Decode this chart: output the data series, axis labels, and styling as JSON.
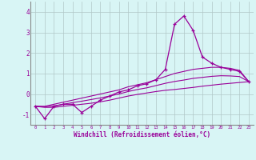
{
  "xlabel": "Windchill (Refroidissement éolien,°C)",
  "x_hours": [
    0,
    1,
    2,
    3,
    4,
    5,
    6,
    7,
    8,
    9,
    10,
    11,
    12,
    13,
    14,
    15,
    16,
    17,
    18,
    19,
    20,
    21,
    22,
    23
  ],
  "main_line": [
    -0.6,
    -1.2,
    -0.6,
    -0.5,
    -0.5,
    -0.9,
    -0.6,
    -0.3,
    -0.1,
    0.1,
    0.2,
    0.4,
    0.5,
    0.7,
    1.2,
    3.4,
    3.8,
    3.1,
    1.8,
    1.5,
    1.3,
    1.2,
    1.1,
    0.6
  ],
  "upper_env": [
    -0.6,
    -0.6,
    -0.5,
    -0.4,
    -0.3,
    -0.2,
    -0.1,
    0.0,
    0.1,
    0.2,
    0.35,
    0.45,
    0.55,
    0.7,
    0.85,
    1.0,
    1.1,
    1.2,
    1.25,
    1.3,
    1.3,
    1.25,
    1.15,
    0.6
  ],
  "lower_env": [
    -0.6,
    -0.65,
    -0.65,
    -0.6,
    -0.55,
    -0.5,
    -0.45,
    -0.38,
    -0.3,
    -0.2,
    -0.1,
    -0.02,
    0.05,
    0.12,
    0.18,
    0.22,
    0.27,
    0.32,
    0.38,
    0.43,
    0.48,
    0.52,
    0.56,
    0.6
  ],
  "mid_env": [
    -0.6,
    -0.62,
    -0.58,
    -0.5,
    -0.42,
    -0.35,
    -0.27,
    -0.19,
    -0.1,
    0.0,
    0.12,
    0.22,
    0.3,
    0.41,
    0.52,
    0.61,
    0.68,
    0.76,
    0.81,
    0.86,
    0.89,
    0.88,
    0.85,
    0.6
  ],
  "line_color": "#990099",
  "bg_color": "#d8f5f5",
  "grid_color": "#b0c8c8",
  "ylim": [
    -1.5,
    4.5
  ],
  "yticks": [
    -1,
    0,
    1,
    2,
    3,
    4
  ]
}
